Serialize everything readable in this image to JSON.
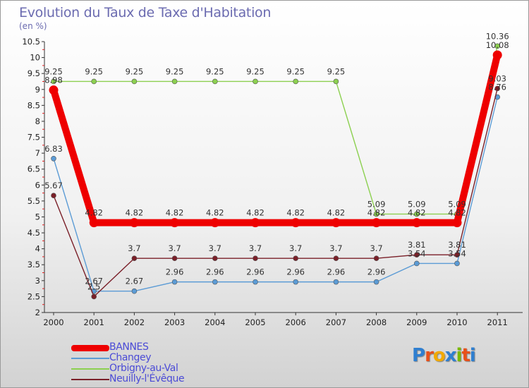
{
  "chart_data": {
    "type": "line",
    "title": "Evolution du Taux de Taxe d'Habitation",
    "subtitle": "(en %)",
    "categories": [
      "2000",
      "2001",
      "2002",
      "2003",
      "2004",
      "2005",
      "2006",
      "2007",
      "2008",
      "2009",
      "2010",
      "2011"
    ],
    "ylim": [
      2,
      10.5
    ],
    "yticks": [
      "2",
      "2.5",
      "3",
      "3.5",
      "4",
      "4.5",
      "5",
      "5.5",
      "6",
      "6.5",
      "7",
      "7.5",
      "8",
      "8.5",
      "9",
      "9.5",
      "10",
      "10.5"
    ],
    "grid": false,
    "series": [
      {
        "name": "BANNES",
        "color": "#ee0000",
        "values": [
          8.98,
          4.82,
          4.82,
          4.82,
          4.82,
          4.82,
          4.82,
          4.82,
          4.82,
          4.82,
          4.82,
          10.08
        ],
        "labels": [
          "8.98",
          "4.82",
          "4.82",
          "4.82",
          "4.82",
          "4.82",
          "4.82",
          "4.82",
          "4.82",
          "4.82",
          "4.82",
          "10.08"
        ]
      },
      {
        "name": "Changey",
        "color": "#5b9bd5",
        "values": [
          6.83,
          2.67,
          2.67,
          2.96,
          2.96,
          2.96,
          2.96,
          2.96,
          2.96,
          3.54,
          3.54,
          8.76
        ],
        "labels": [
          "6.83",
          "2.67",
          "2.67",
          "2.96",
          "2.96",
          "2.96",
          "2.96",
          "2.96",
          "2.96",
          "3.54",
          "3.54",
          "8.76"
        ]
      },
      {
        "name": "Orbigny-au-Val",
        "color": "#8cd050",
        "values": [
          9.25,
          9.25,
          9.25,
          9.25,
          9.25,
          9.25,
          9.25,
          9.25,
          5.09,
          5.09,
          5.09,
          10.36
        ],
        "labels": [
          "9.25",
          "9.25",
          "9.25",
          "9.25",
          "9.25",
          "9.25",
          "9.25",
          "9.25",
          "5.09",
          "5.09",
          "5.09",
          "10.36"
        ]
      },
      {
        "name": "Neuilly-l'Évêque",
        "color": "#7a1f28",
        "values": [
          5.67,
          2.5,
          3.7,
          3.7,
          3.7,
          3.7,
          3.7,
          3.7,
          3.7,
          3.81,
          3.81,
          9.03
        ],
        "labels": [
          "5.67",
          "2.5",
          "3.7",
          "3.7",
          "3.7",
          "3.7",
          "3.7",
          "3.7",
          "3.7",
          "3.81",
          "3.81",
          "9.03"
        ]
      }
    ]
  },
  "legend": {
    "items": [
      "BANNES",
      "Changey",
      "Orbigny-au-Val",
      "Neuilly-l'Évêque"
    ]
  },
  "logo": {
    "letters": [
      "P",
      "r",
      "o",
      "x",
      "i",
      "t",
      "i"
    ],
    "colors": [
      "#2f7fd0",
      "#e8501a",
      "#f2a900",
      "#2f7fd0",
      "#7ab800",
      "#e8501a",
      "#2f7fd0"
    ]
  }
}
